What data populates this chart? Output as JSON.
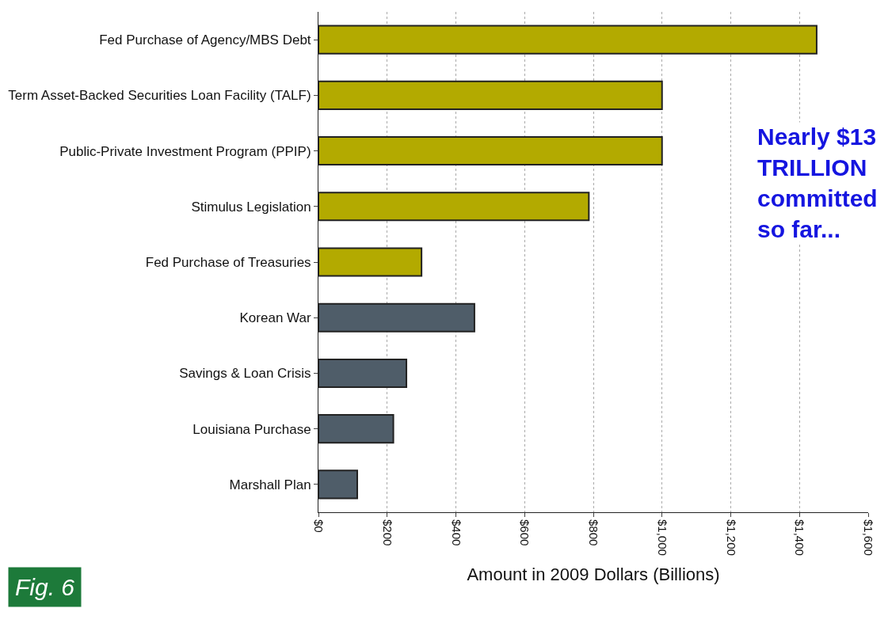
{
  "chart_data": {
    "type": "bar",
    "orientation": "horizontal",
    "categories": [
      "Fed Purchase of Agency/MBS Debt",
      "Term Asset-Backed Securities Loan Facility (TALF)",
      "Public-Private Investment Program (PPIP)",
      "Stimulus Legislation",
      "Fed Purchase of Treasuries",
      "Korean War",
      "Savings & Loan Crisis",
      "Louisiana Purchase",
      "Marshall Plan"
    ],
    "values": [
      1450,
      1000,
      1000,
      787,
      300,
      454,
      256,
      218,
      113
    ],
    "colors": [
      "#b3aa00",
      "#b3aa00",
      "#b3aa00",
      "#b3aa00",
      "#b3aa00",
      "#4f5d69",
      "#4f5d69",
      "#4f5d69",
      "#4f5d69"
    ],
    "xlabel": "Amount in 2009 Dollars (Billions)",
    "xlim": [
      0,
      1600
    ],
    "xticks": [
      {
        "value": 0,
        "label": "$0"
      },
      {
        "value": 200,
        "label": "$200"
      },
      {
        "value": 400,
        "label": "$400"
      },
      {
        "value": 600,
        "label": "$600"
      },
      {
        "value": 800,
        "label": "$800"
      },
      {
        "value": 1000,
        "label": "$1,000"
      },
      {
        "value": 1200,
        "label": "$1,200"
      },
      {
        "value": 1400,
        "label": "$1,400"
      },
      {
        "value": 1600,
        "label": "$1,600"
      }
    ],
    "grid": "x",
    "annotations": [
      "Nearly $13 TRILLION committed so far...",
      "Fig. 6"
    ]
  }
}
